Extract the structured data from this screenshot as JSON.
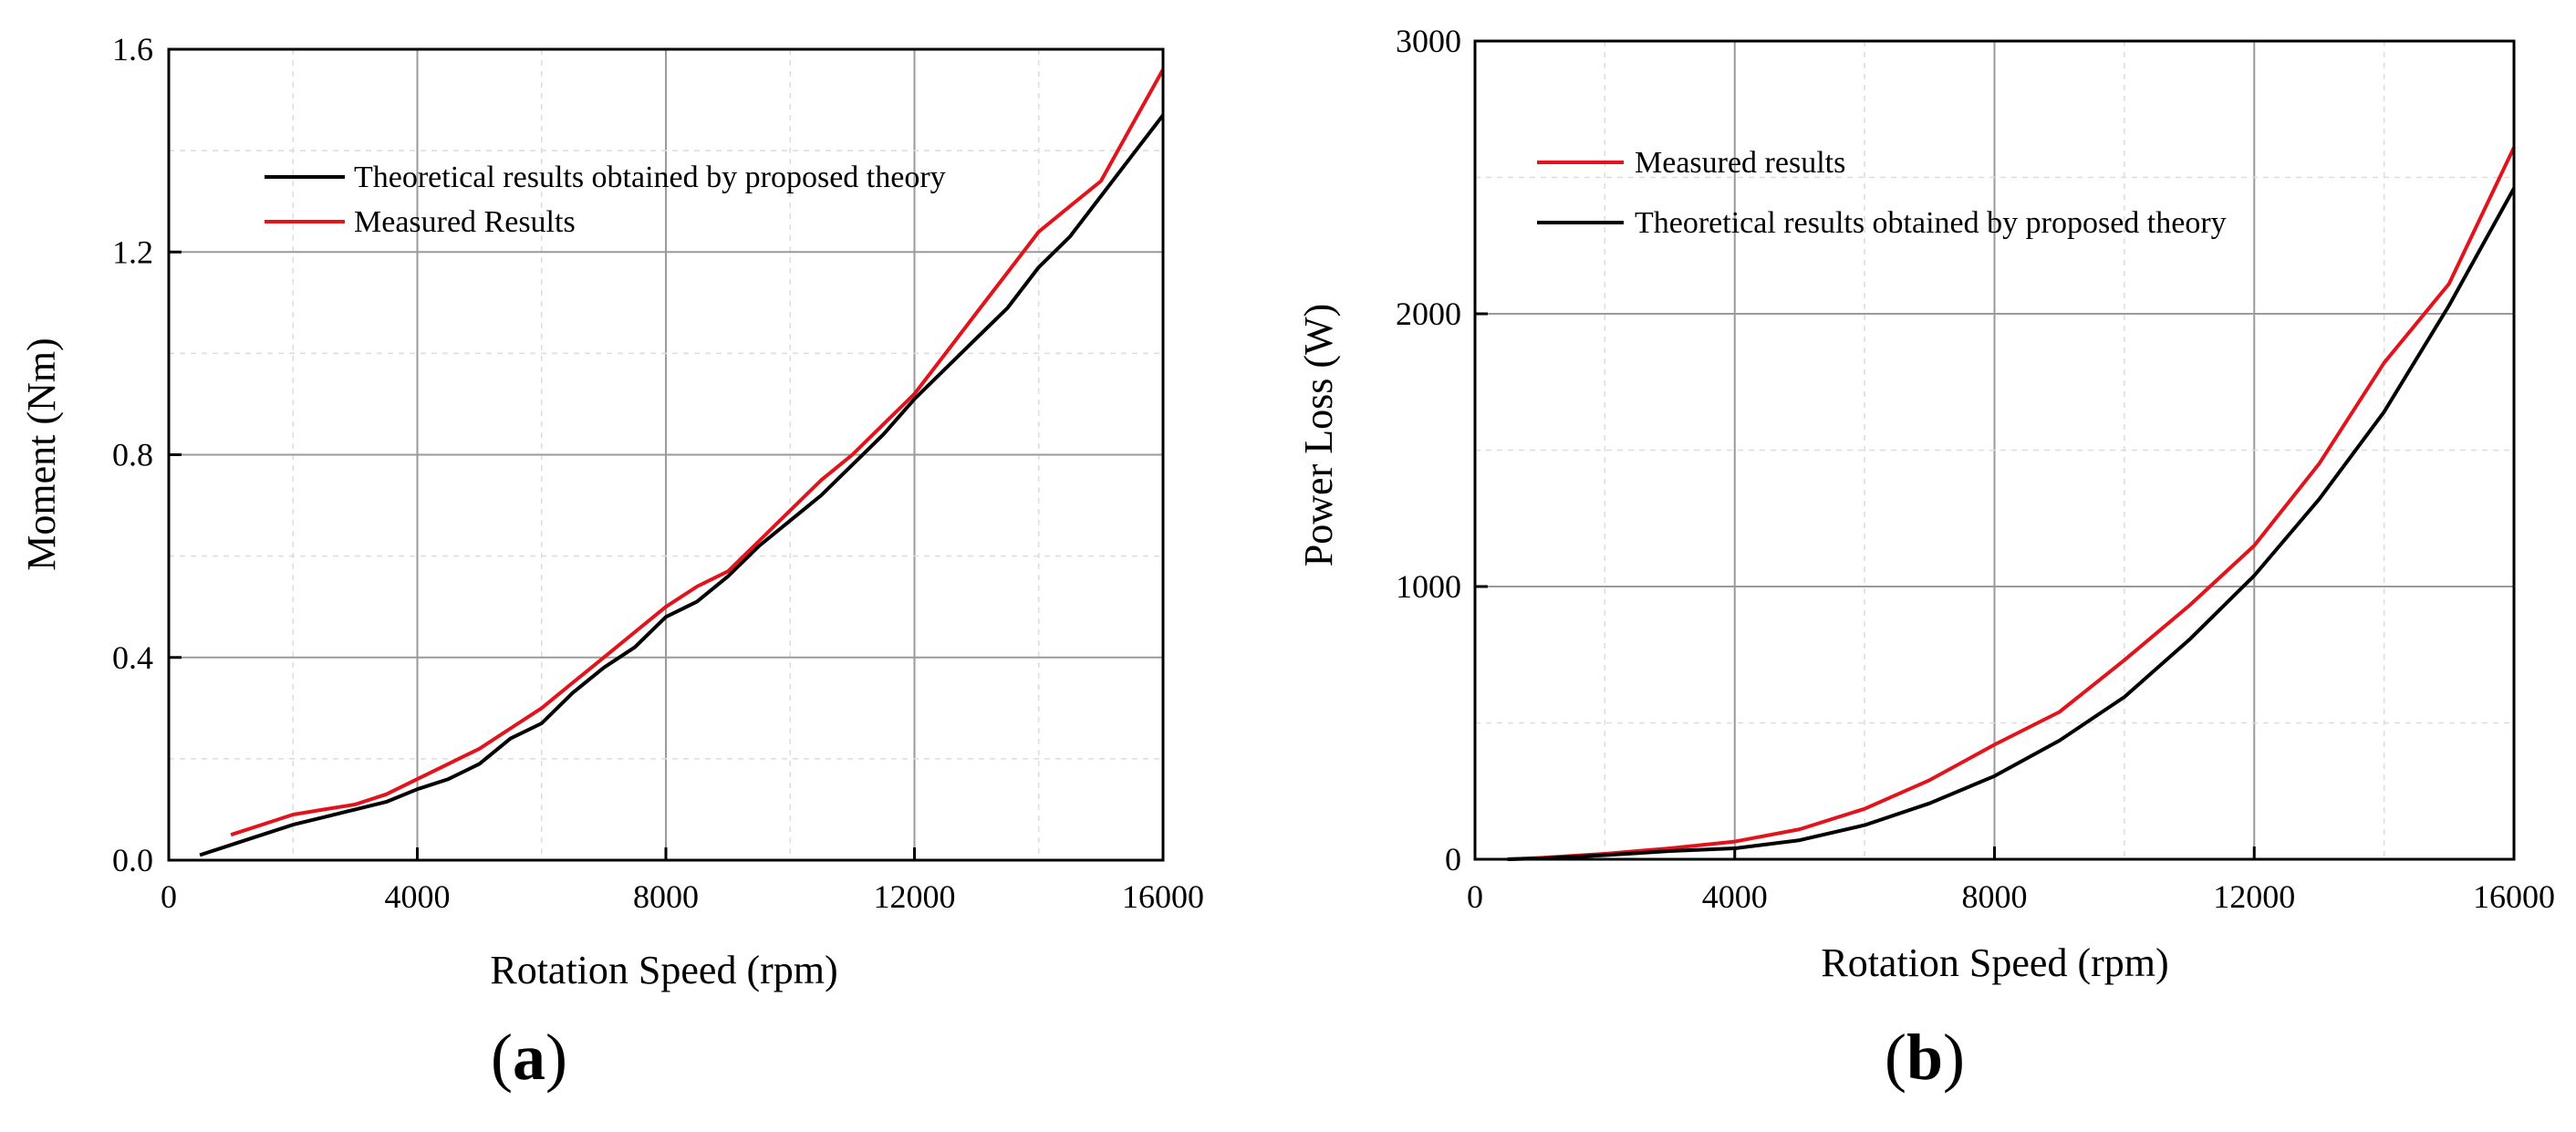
{
  "chart_data": [
    {
      "type": "line",
      "panel_label": "a",
      "title": "",
      "xlabel": "Rotation Speed (rpm)",
      "ylabel": "Moment (Nm)",
      "xlim": [
        0,
        16000
      ],
      "ylim": [
        0,
        1.6
      ],
      "xticks": [
        0,
        4000,
        8000,
        12000,
        16000
      ],
      "xtick_labels": [
        "0",
        "4000",
        "8000",
        "12000",
        "16000"
      ],
      "yticks": [
        0,
        0.4,
        0.8,
        1.2,
        1.6
      ],
      "ytick_labels": [
        "0.0",
        "0.4",
        "0.8",
        "1.2",
        "1.6"
      ],
      "grid": true,
      "legend_position": "top-left",
      "series": [
        {
          "name": "Theoretical  results obtained by proposed theory",
          "color": "#000000",
          "x": [
            500,
            1000,
            1500,
            2000,
            2500,
            3000,
            3500,
            4000,
            4500,
            5000,
            5500,
            6000,
            6500,
            7000,
            7500,
            8000,
            8500,
            9000,
            9500,
            10000,
            10500,
            11000,
            11500,
            12000,
            12500,
            13000,
            13500,
            14000,
            14500,
            15000,
            15500,
            16000
          ],
          "values": [
            0.01,
            0.03,
            0.05,
            0.07,
            0.085,
            0.1,
            0.115,
            0.14,
            0.16,
            0.19,
            0.24,
            0.27,
            0.33,
            0.38,
            0.42,
            0.48,
            0.51,
            0.56,
            0.62,
            0.67,
            0.72,
            0.78,
            0.84,
            0.91,
            0.97,
            1.03,
            1.09,
            1.17,
            1.23,
            1.31,
            1.39,
            1.47
          ]
        },
        {
          "name": "Measured Results",
          "color": "#e3131b",
          "x": [
            1000,
            1500,
            2000,
            2500,
            3000,
            3500,
            4000,
            4500,
            5000,
            5500,
            6000,
            6500,
            7000,
            7500,
            8000,
            8500,
            9000,
            9500,
            10000,
            10500,
            11000,
            11500,
            12000,
            12500,
            13000,
            13500,
            14000,
            14500,
            15000,
            15500,
            16000
          ],
          "values": [
            0.05,
            0.07,
            0.09,
            0.1,
            0.11,
            0.13,
            0.16,
            0.19,
            0.22,
            0.26,
            0.3,
            0.35,
            0.4,
            0.45,
            0.5,
            0.54,
            0.57,
            0.63,
            0.69,
            0.75,
            0.8,
            0.86,
            0.92,
            1.0,
            1.08,
            1.16,
            1.24,
            1.29,
            1.34,
            1.45,
            1.56
          ]
        }
      ]
    },
    {
      "type": "line",
      "panel_label": "b",
      "title": "",
      "xlabel": "Rotation Speed (rpm)",
      "ylabel": "Power Loss (W)",
      "xlim": [
        0,
        16000
      ],
      "ylim": [
        0,
        3000
      ],
      "xticks": [
        0,
        4000,
        8000,
        12000,
        16000
      ],
      "xtick_labels": [
        "0",
        "4000",
        "8000",
        "12000",
        "16000"
      ],
      "yticks": [
        0,
        1000,
        2000,
        3000
      ],
      "ytick_labels": [
        "0",
        "1000",
        "2000",
        "3000"
      ],
      "grid": true,
      "legend_position": "top-left",
      "series": [
        {
          "name": "Measured results",
          "color": "#e3131b",
          "x": [
            500,
            1000,
            2000,
            3000,
            4000,
            5000,
            6000,
            7000,
            8000,
            9000,
            10000,
            11000,
            12000,
            13000,
            14000,
            15000,
            16000
          ],
          "values": [
            0,
            5,
            20,
            40,
            65,
            110,
            185,
            290,
            420,
            540,
            730,
            930,
            1150,
            1450,
            1820,
            2110,
            2610
          ]
        },
        {
          "name": "Theoretical  results obtained by proposed theory",
          "color": "#000000",
          "x": [
            500,
            1000,
            2000,
            3000,
            4000,
            5000,
            6000,
            7000,
            8000,
            9000,
            10000,
            11000,
            12000,
            13000,
            14000,
            15000,
            16000
          ],
          "values": [
            0,
            3,
            15,
            30,
            40,
            70,
            125,
            205,
            305,
            435,
            595,
            805,
            1040,
            1320,
            1640,
            2030,
            2460
          ]
        }
      ]
    }
  ]
}
